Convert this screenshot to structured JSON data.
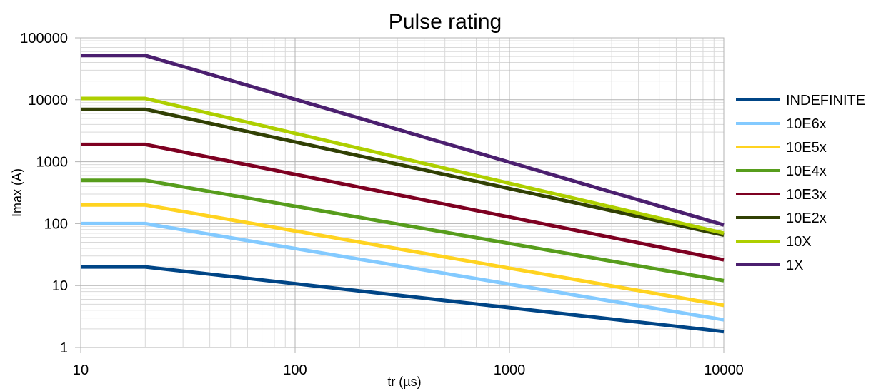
{
  "chart_data": {
    "type": "line",
    "title": "Pulse rating",
    "xlabel": "tr (µs)",
    "ylabel": "Imax (A)",
    "xscale": "log",
    "yscale": "log",
    "xlim": [
      10,
      10000
    ],
    "ylim": [
      1,
      100000
    ],
    "x_ticks": [
      "10",
      "100",
      "1000",
      "10000"
    ],
    "y_ticks": [
      "1",
      "10",
      "100",
      "1000",
      "10000",
      "100000"
    ],
    "grid": true,
    "legend_position": "right",
    "x": [
      10,
      20,
      10000
    ],
    "series": [
      {
        "name": "INDEFINITE",
        "color": "#004586",
        "values": [
          20,
          20,
          1.8
        ]
      },
      {
        "name": "10E6x",
        "color": "#83CAFF",
        "values": [
          100,
          100,
          2.8
        ]
      },
      {
        "name": "10E5x",
        "color": "#FFD320",
        "values": [
          200,
          200,
          4.8
        ]
      },
      {
        "name": "10E4x",
        "color": "#579D1C",
        "values": [
          500,
          500,
          12
        ]
      },
      {
        "name": "10E3x",
        "color": "#7E0021",
        "values": [
          1900,
          1900,
          26
        ]
      },
      {
        "name": "10E2x",
        "color": "#314004",
        "values": [
          7000,
          7000,
          65
        ]
      },
      {
        "name": "10X",
        "color": "#AECF00",
        "values": [
          10500,
          10500,
          70
        ]
      },
      {
        "name": "1X",
        "color": "#4B1F6F",
        "values": [
          52000,
          52000,
          95
        ]
      }
    ]
  }
}
